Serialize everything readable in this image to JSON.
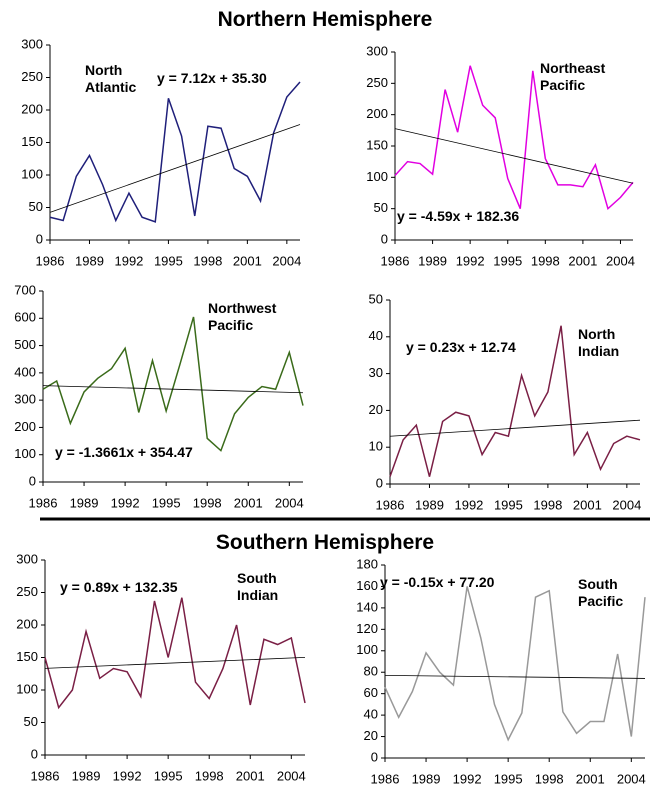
{
  "headings": [
    "Northern Hemisphere",
    "Southern Hemisphere"
  ],
  "chart_data": [
    {
      "type": "line",
      "title": "North Atlantic",
      "annotation": "y = 7.12x + 35.30",
      "x": [
        1986,
        1987,
        1988,
        1989,
        1990,
        1991,
        1992,
        1993,
        1994,
        1995,
        1996,
        1997,
        1998,
        1999,
        2000,
        2001,
        2002,
        2003,
        2004,
        2005
      ],
      "series": [
        {
          "color": "#1f1f7a",
          "values": [
            35,
            30,
            98,
            130,
            85,
            30,
            72,
            35,
            28,
            218,
            160,
            37,
            175,
            172,
            110,
            98,
            60,
            165,
            220,
            243
          ]
        }
      ],
      "trendline": {
        "slope": 7.12,
        "intercept": 35.3
      },
      "xlim": [
        1986,
        2005
      ],
      "xticks": [
        1986,
        1989,
        1992,
        1995,
        1998,
        2001,
        2004
      ],
      "ylim": [
        0,
        300
      ],
      "yticks": [
        0,
        50,
        100,
        150,
        200,
        250,
        300
      ]
    },
    {
      "type": "line",
      "title": "Northeast Pacific",
      "annotation": "y = -4.59x + 182.36",
      "x": [
        1986,
        1987,
        1988,
        1989,
        1990,
        1991,
        1992,
        1993,
        1994,
        1995,
        1996,
        1997,
        1998,
        1999,
        2000,
        2001,
        2002,
        2003,
        2004,
        2005
      ],
      "series": [
        {
          "color": "#e100e1",
          "values": [
            103,
            125,
            122,
            105,
            240,
            172,
            278,
            215,
            195,
            98,
            50,
            270,
            130,
            88,
            88,
            85,
            120,
            50,
            68,
            92
          ]
        }
      ],
      "trendline": {
        "slope": -4.59,
        "intercept": 182.36
      },
      "xlim": [
        1986,
        2005
      ],
      "xticks": [
        1986,
        1989,
        1992,
        1995,
        1998,
        2001,
        2004
      ],
      "ylim": [
        0,
        300
      ],
      "yticks": [
        0,
        50,
        100,
        150,
        200,
        250,
        300
      ]
    },
    {
      "type": "line",
      "title": "Northwest Pacific",
      "annotation": "y = -1.3661x + 354.47",
      "x": [
        1986,
        1987,
        1988,
        1989,
        1990,
        1991,
        1992,
        1993,
        1994,
        1995,
        1996,
        1997,
        1998,
        1999,
        2000,
        2001,
        2002,
        2003,
        2004,
        2005
      ],
      "series": [
        {
          "color": "#3a6b1a",
          "values": [
            340,
            370,
            215,
            330,
            380,
            415,
            490,
            255,
            445,
            260,
            430,
            605,
            160,
            115,
            250,
            310,
            350,
            340,
            475,
            280
          ]
        }
      ],
      "trendline": {
        "slope": -1.3661,
        "intercept": 354.47
      },
      "xlim": [
        1986,
        2005
      ],
      "xticks": [
        1986,
        1989,
        1992,
        1995,
        1998,
        2001,
        2004
      ],
      "ylim": [
        0,
        700
      ],
      "yticks": [
        0,
        100,
        200,
        300,
        400,
        500,
        600,
        700
      ]
    },
    {
      "type": "line",
      "title": "North Indian",
      "annotation": "y = 0.23x + 12.74",
      "x": [
        1986,
        1987,
        1988,
        1989,
        1990,
        1991,
        1992,
        1993,
        1994,
        1995,
        1996,
        1997,
        1998,
        1999,
        2000,
        2001,
        2002,
        2003,
        2004,
        2005
      ],
      "series": [
        {
          "color": "#7a1f45",
          "values": [
            2,
            12,
            16,
            2,
            17,
            19.5,
            18.5,
            8,
            14,
            13,
            29.5,
            18.5,
            25,
            43,
            8,
            14,
            4,
            11,
            13,
            12
          ]
        }
      ],
      "trendline": {
        "slope": 0.23,
        "intercept": 12.74
      },
      "xlim": [
        1986,
        2005
      ],
      "xticks": [
        1986,
        1989,
        1992,
        1995,
        1998,
        2001,
        2004
      ],
      "ylim": [
        0,
        50
      ],
      "yticks": [
        0,
        10,
        20,
        30,
        40,
        50
      ]
    },
    {
      "type": "line",
      "title": "South Indian",
      "annotation": "y = 0.89x + 132.35",
      "x": [
        1986,
        1987,
        1988,
        1989,
        1990,
        1991,
        1992,
        1993,
        1994,
        1995,
        1996,
        1997,
        1998,
        1999,
        2000,
        2001,
        2002,
        2003,
        2004,
        2005
      ],
      "series": [
        {
          "color": "#7a1f45",
          "values": [
            150,
            73,
            100,
            190,
            118,
            133,
            128,
            90,
            237,
            150,
            242,
            112,
            87,
            133,
            200,
            77,
            178,
            170,
            180,
            80
          ]
        }
      ],
      "trendline": {
        "slope": 0.89,
        "intercept": 132.35
      },
      "xlim": [
        1986,
        2005
      ],
      "xticks": [
        1986,
        1989,
        1992,
        1995,
        1998,
        2001,
        2004
      ],
      "ylim": [
        0,
        300
      ],
      "yticks": [
        0,
        50,
        100,
        150,
        200,
        250,
        300
      ]
    },
    {
      "type": "line",
      "title": "South Pacific",
      "annotation": "y = -0.15x + 77.20",
      "x": [
        1986,
        1987,
        1988,
        1989,
        1990,
        1991,
        1992,
        1993,
        1994,
        1995,
        1996,
        1997,
        1998,
        1999,
        2000,
        2001,
        2002,
        2003,
        2004,
        2005
      ],
      "series": [
        {
          "color": "#999999",
          "values": [
            66,
            38,
            62,
            98,
            80,
            68,
            160,
            112,
            50,
            17,
            42,
            150,
            156,
            43,
            23,
            34,
            34,
            97,
            20,
            150
          ]
        }
      ],
      "trendline": {
        "slope": -0.15,
        "intercept": 77.2
      },
      "xlim": [
        1986,
        2005
      ],
      "xticks": [
        1986,
        1989,
        1992,
        1995,
        1998,
        2001,
        2004
      ],
      "ylim": [
        0,
        180
      ],
      "yticks": [
        0,
        20,
        40,
        60,
        80,
        100,
        120,
        140,
        160,
        180
      ]
    }
  ]
}
